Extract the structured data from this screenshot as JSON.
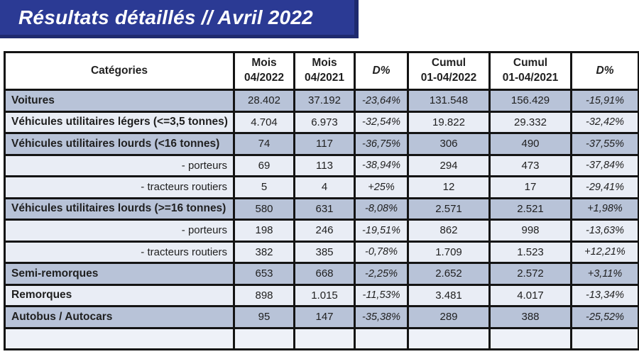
{
  "title": "Résultats détaillés // Avril 2022",
  "colors": {
    "banner_blue": "#2b3a94",
    "banner_shadow": "#1e2a6e",
    "row_dark": "#b8c3d8",
    "row_light": "#e9edf5",
    "border": "#141414",
    "header_bg": "#ffffff",
    "text": "#1f1f1f",
    "title_text": "#ffffff"
  },
  "table": {
    "headers": [
      {
        "lines": [
          "Catégories"
        ],
        "italic": false
      },
      {
        "lines": [
          "Mois",
          "04/2022"
        ],
        "italic": false
      },
      {
        "lines": [
          "Mois",
          "04/2021"
        ],
        "italic": false
      },
      {
        "lines": [
          "D%"
        ],
        "italic": true
      },
      {
        "lines": [
          "Cumul",
          "01-04/2022"
        ],
        "italic": false
      },
      {
        "lines": [
          "Cumul",
          "01-04/2021"
        ],
        "italic": false
      },
      {
        "lines": [
          "D%"
        ],
        "italic": true
      }
    ],
    "rows": [
      {
        "category": "Voitures",
        "bold": true,
        "sub": false,
        "shade": "dark",
        "values": [
          "28.402",
          "37.192",
          "-23,64%",
          "131.548",
          "156.429",
          "-15,91%"
        ]
      },
      {
        "category": "Véhicules utilitaires légers (<=3,5 tonnes)",
        "bold": true,
        "sub": false,
        "shade": "light",
        "values": [
          "4.704",
          "6.973",
          "-32,54%",
          "19.822",
          "29.332",
          "-32,42%"
        ]
      },
      {
        "category": "Véhicules utilitaires lourds (<16 tonnes)",
        "bold": true,
        "sub": false,
        "shade": "dark",
        "values": [
          "74",
          "117",
          "-36,75%",
          "306",
          "490",
          "-37,55%"
        ]
      },
      {
        "category": "- porteurs",
        "bold": false,
        "sub": true,
        "shade": "light",
        "values": [
          "69",
          "113",
          "-38,94%",
          "294",
          "473",
          "-37,84%"
        ]
      },
      {
        "category": "- tracteurs routiers",
        "bold": false,
        "sub": true,
        "shade": "light",
        "values": [
          "5",
          "4",
          "+25%",
          "12",
          "17",
          "-29,41%"
        ]
      },
      {
        "category": "Véhicules utilitaires lourds (>=16 tonnes)",
        "bold": true,
        "sub": false,
        "shade": "dark",
        "values": [
          "580",
          "631",
          "-8,08%",
          "2.571",
          "2.521",
          "+1,98%"
        ]
      },
      {
        "category": "- porteurs",
        "bold": false,
        "sub": true,
        "shade": "light",
        "values": [
          "198",
          "246",
          "-19,51%",
          "862",
          "998",
          "-13,63%"
        ]
      },
      {
        "category": "- tracteurs routiers",
        "bold": false,
        "sub": true,
        "shade": "light",
        "values": [
          "382",
          "385",
          "-0,78%",
          "1.709",
          "1.523",
          "+12,21%"
        ]
      },
      {
        "category": "Semi-remorques",
        "bold": true,
        "sub": false,
        "shade": "dark",
        "values": [
          "653",
          "668",
          "-2,25%",
          "2.652",
          "2.572",
          "+3,11%"
        ]
      },
      {
        "category": "Remorques",
        "bold": true,
        "sub": false,
        "shade": "light",
        "values": [
          "898",
          "1.015",
          "-11,53%",
          "3.481",
          "4.017",
          "-13,34%"
        ]
      },
      {
        "category": "Autobus / Autocars",
        "bold": true,
        "sub": false,
        "shade": "dark",
        "values": [
          "95",
          "147",
          "-35,38%",
          "289",
          "388",
          "-25,52%"
        ]
      }
    ],
    "percent_column_indexes": [
      2,
      5
    ]
  }
}
